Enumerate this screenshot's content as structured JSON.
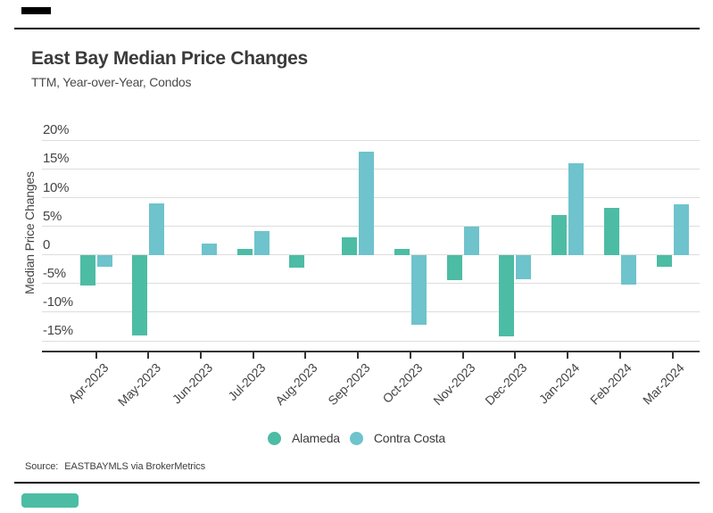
{
  "header": {
    "title": "East Bay Median Price Changes",
    "subtitle": "TTM, Year-over-Year, Condos"
  },
  "source": {
    "label": "Source:",
    "text": "EASTBAYMLS via BrokerMetrics"
  },
  "colors": {
    "alameda": "#4dbca4",
    "contra_costa": "#6ec3cc",
    "axis": "#333333",
    "grid": "#dddddd",
    "text_dark": "#3b3b3b",
    "top_tab_mark": "#000000",
    "bottom_brand_mark": "#4dbca4"
  },
  "chart_data": {
    "type": "bar",
    "title": "East Bay Median Price Changes",
    "subtitle": "TTM, Year-over-Year, Condos",
    "xlabel": "",
    "ylabel": "Median Price Changes",
    "categories": [
      "Apr-2023",
      "May-2023",
      "Jun-2023",
      "Jul-2023",
      "Aug-2023",
      "Sep-2023",
      "Oct-2023",
      "Nov-2023",
      "Dec-2023",
      "Jan-2024",
      "Feb-2024",
      "Mar-2024"
    ],
    "series": [
      {
        "name": "Alameda",
        "color": "#4dbca4",
        "values": [
          -5.3,
          -14.1,
          null,
          1.0,
          -2.2,
          3.1,
          1.1,
          -4.4,
          -14.2,
          7.0,
          8.2,
          -2.0
        ]
      },
      {
        "name": "Contra Costa",
        "color": "#6ec3cc",
        "values": [
          -2.1,
          9.0,
          2.0,
          4.1,
          null,
          18.0,
          -12.2,
          4.9,
          -4.2,
          16.0,
          -5.2,
          8.9
        ]
      }
    ],
    "y_ticks": [
      {
        "label": "20%",
        "value": 20
      },
      {
        "label": "15%",
        "value": 15
      },
      {
        "label": "10%",
        "value": 10
      },
      {
        "label": "5%",
        "value": 5
      },
      {
        "label": "0",
        "value": 0
      },
      {
        "label": "-5%",
        "value": -5
      },
      {
        "label": "-10%",
        "value": -10
      },
      {
        "label": "-15%",
        "value": -15
      }
    ],
    "ylim": [
      -17.5,
      22
    ],
    "grid": true,
    "legend_position": "bottom"
  }
}
